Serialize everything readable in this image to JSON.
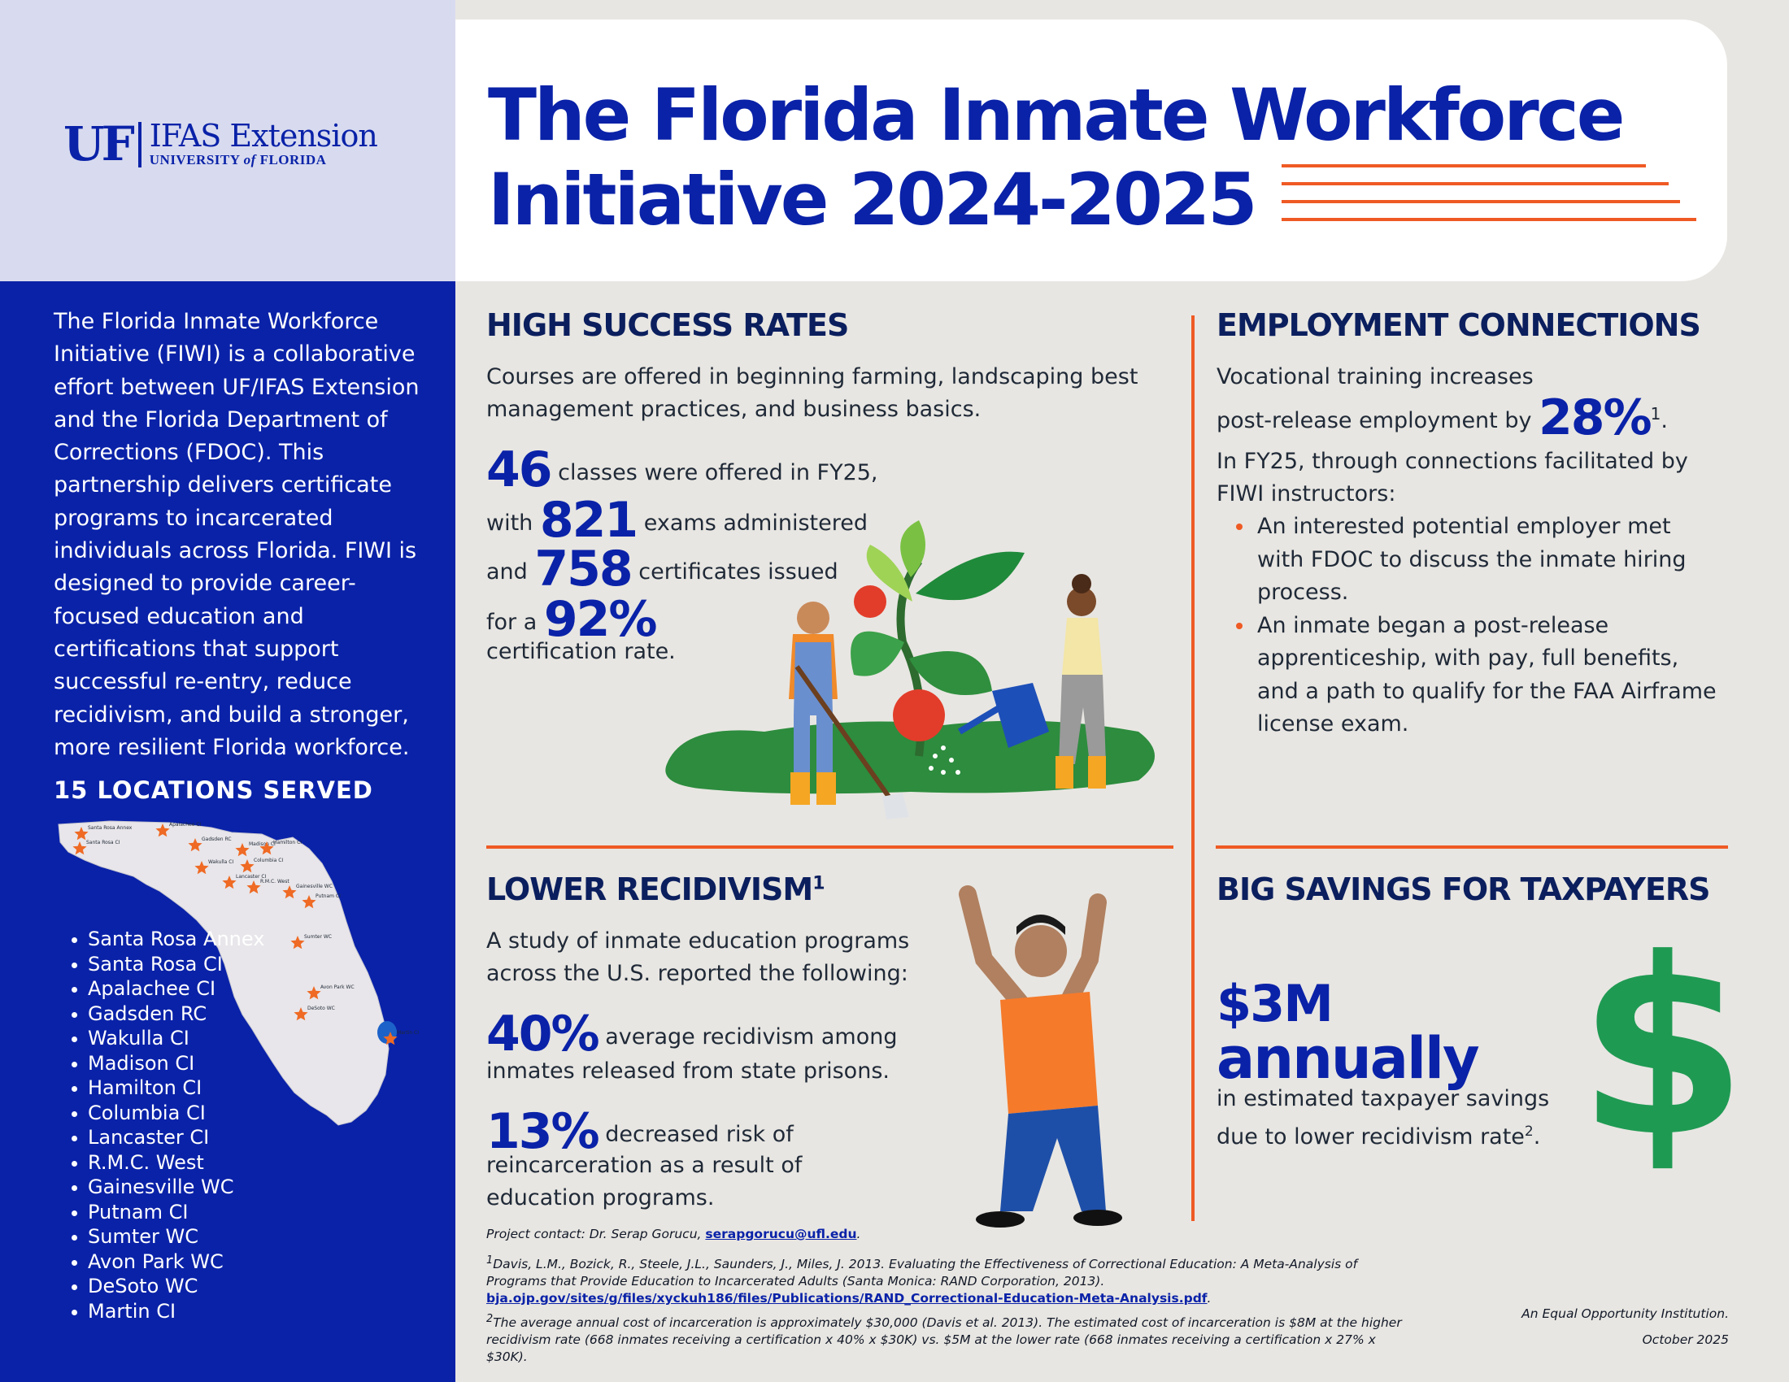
{
  "logo": {
    "uf": "UF",
    "ifas": "IFAS Extension",
    "univ_prefix": "UNIVERSITY",
    "univ_of": "of",
    "univ_suffix": "FLORIDA"
  },
  "title": {
    "line1": "The Florida Inmate Workforce",
    "line2": "Initiative 2024-2025"
  },
  "intro": "The Florida Inmate Workforce Initiative (FIWI) is a collaborative effort between UF/IFAS Extension and the Florida Department of Corrections (FDOC). This partnership delivers certificate programs to incarcerated individuals across Florida. FIWI is designed to provide career-focused education and certifications that support successful re-entry, reduce recidivism, and build a stronger, more resilient Florida workforce.",
  "locations": {
    "heading": "15 LOCATIONS SERVED",
    "items": [
      "Santa Rosa Annex",
      "Santa Rosa CI",
      "Apalachee CI",
      "Gadsden RC",
      "Wakulla CI",
      "Madison CI",
      "Hamilton CI",
      "Columbia CI",
      "Lancaster CI",
      "R.M.C. West",
      "Gainesville WC",
      "Putnam CI",
      "Sumter WC",
      "Avon Park WC",
      "DeSoto WC",
      "Martin CI"
    ],
    "map_labels": [
      "Santa Rosa Annex",
      "Santa Rosa CI",
      "Apalachee CI",
      "Gadsden RC",
      "Wakulla CI",
      "Madison CI",
      "Hamilton CI",
      "Columbia CI",
      "Lancaster CI",
      "R.M.C. West",
      "Gainesville WC",
      "Putnam CI",
      "Sumter WC",
      "Avon Park WC",
      "DeSoto WC",
      "Martin CI"
    ]
  },
  "success": {
    "heading": "HIGH SUCCESS RATES",
    "intro": "Courses are offered in beginning farming, landscaping best management practices, and business basics.",
    "classes_num": "46",
    "classes_text": "classes were offered in FY25,",
    "exams_pre": "with",
    "exams_num": "821",
    "exams_text": "exams administered",
    "certs_pre": "and",
    "certs_num": "758",
    "certs_text": "certificates issued",
    "rate_pre": "for a",
    "rate_num": "92%",
    "rate_text": "certification rate."
  },
  "employment": {
    "heading": "EMPLOYMENT CONNECTIONS",
    "line1": "Vocational training increases",
    "line2": "post-release employment by",
    "pct": "28%",
    "sup": "1",
    "period": ".",
    "fy25": "In FY25, through connections facilitated by FIWI instructors:",
    "bullets": [
      "An interested potential employer met with FDOC to discuss the inmate hiring process.",
      "An inmate began a post-release apprenticeship, with pay, full benefits, and a path to qualify for the FAA Airframe license exam."
    ]
  },
  "recidivism": {
    "heading": "LOWER RECIDIVISM",
    "sup": "1",
    "intro": "A study of inmate education programs across the U.S. reported the following:",
    "stat1_num": "40%",
    "stat1_text1": "average recidivism among",
    "stat1_text2": "inmates released from state prisons.",
    "stat2_num": "13%",
    "stat2_text1": "decreased risk of",
    "stat2_text2": "reincarceration as a result of",
    "stat2_text3": "education programs."
  },
  "savings": {
    "heading": "BIG SAVINGS FOR TAXPAYERS",
    "amount": "$3M",
    "annually": "annually",
    "line1": "in estimated taxpayer savings",
    "line2": "due to lower recidivism rate",
    "sup": "2",
    "period": ".",
    "dollar": "$"
  },
  "footer": {
    "contact_prefix": "Project contact: Dr. Serap Gorucu,",
    "contact_email": "serapgorucu@ufl.edu",
    "contact_end": ".",
    "fn1_num": "1",
    "fn1_text": "Davis, L.M., Bozick, R., Steele, J.L., Saunders, J., Miles, J. 2013. Evaluating the Effectiveness of Correctional Education: A Meta-Analysis of Programs that Provide Education to Incarcerated Adults (Santa Monica: RAND Corporation, 2013).",
    "fn1_link": "bja.ojp.gov/sites/g/files/xyckuh186/files/Publications/RAND_Correctional-Education-Meta-Analysis.pdf",
    "fn1_end": ".",
    "fn2_num": "2",
    "fn2_text": "The average annual cost of incarceration is approximately $30,000 (Davis et al. 2013). The estimated cost of incarceration is $8M at the higher recidivism rate (668 inmates receiving a certification x 40% x $30K) vs. $5M at the lower rate (668 inmates receiving a certification x 27% x $30K).",
    "equal": "An Equal Opportunity Institution.",
    "date": "October 2025"
  },
  "colors": {
    "blue": "#0a22a8",
    "navy": "#0b1f5e",
    "orange": "#ef5a24",
    "green": "#1f9a53",
    "bg": "#e8e6e2"
  },
  "icons": [
    "florida-map",
    "location-star-icon",
    "farmer-man-illustration",
    "gardener-woman-illustration",
    "tomato-plant-illustration",
    "celebrating-man-illustration",
    "dollar-sign-icon"
  ]
}
